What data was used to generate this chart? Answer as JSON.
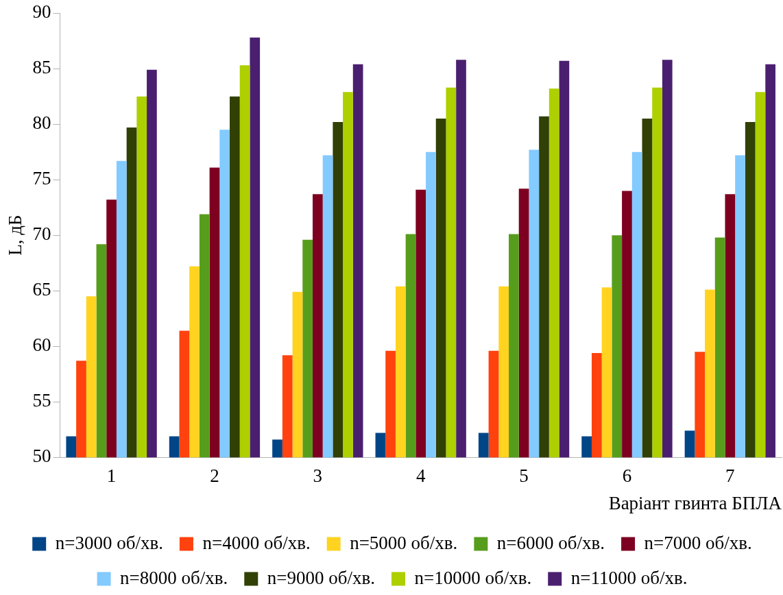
{
  "chart_data": {
    "type": "bar",
    "xlabel": "Варіант гвинта БПЛА",
    "ylabel": "L, дБ",
    "categories": [
      "1",
      "2",
      "3",
      "4",
      "5",
      "6",
      "7"
    ],
    "ylim": [
      50,
      90
    ],
    "yticks": [
      50,
      55,
      60,
      65,
      70,
      75,
      80,
      85,
      90
    ],
    "grid": false,
    "legend": "bottom",
    "series": [
      {
        "name": "n=3000 об/хв.",
        "color": "#004586",
        "values": [
          51.9,
          51.9,
          51.6,
          52.2,
          52.2,
          51.9,
          52.4
        ]
      },
      {
        "name": "n=4000 об/хв.",
        "color": "#ff420e",
        "values": [
          58.7,
          61.4,
          59.2,
          59.6,
          59.6,
          59.4,
          59.5
        ]
      },
      {
        "name": "n=5000 об/хв.",
        "color": "#ffd320",
        "values": [
          64.5,
          67.2,
          64.9,
          65.4,
          65.4,
          65.3,
          65.1
        ]
      },
      {
        "name": "n=6000 об/хв.",
        "color": "#579d1c",
        "values": [
          69.2,
          71.9,
          69.6,
          70.1,
          70.1,
          70.0,
          69.8
        ]
      },
      {
        "name": "n=7000 об/хв.",
        "color": "#7e0021",
        "values": [
          73.2,
          76.1,
          73.7,
          74.1,
          74.2,
          74.0,
          73.7
        ]
      },
      {
        "name": "n=8000 об/хв.",
        "color": "#83caff",
        "values": [
          76.7,
          79.5,
          77.2,
          77.5,
          77.7,
          77.5,
          77.2
        ]
      },
      {
        "name": "n=9000 об/хв.",
        "color": "#314004",
        "values": [
          79.7,
          82.5,
          80.2,
          80.5,
          80.7,
          80.5,
          80.2
        ]
      },
      {
        "name": "n=10000 об/хв.",
        "color": "#aecf00",
        "values": [
          82.5,
          85.3,
          82.9,
          83.3,
          83.2,
          83.3,
          82.9
        ]
      },
      {
        "name": "n=11000 об/хв.",
        "color": "#4b1f6f",
        "values": [
          84.9,
          87.8,
          85.4,
          85.8,
          85.7,
          85.8,
          85.4
        ]
      }
    ]
  }
}
